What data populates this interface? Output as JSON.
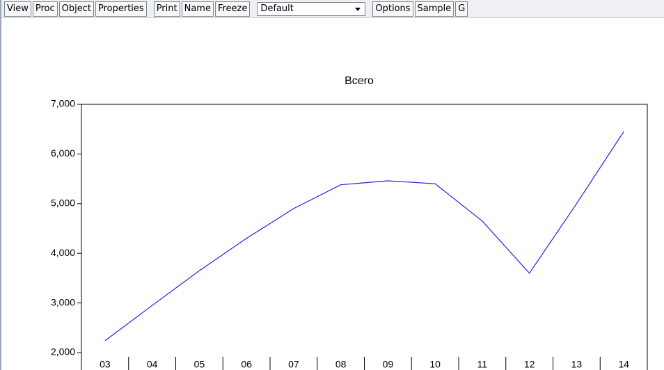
{
  "toolbar": {
    "buttons_left": [
      "View",
      "Proc",
      "Object",
      "Properties"
    ],
    "buttons_mid": [
      "Print",
      "Name",
      "Freeze"
    ],
    "dropdown": "Default",
    "buttons_right": [
      "Options",
      "Sample",
      "G"
    ]
  },
  "chart_data": {
    "type": "line",
    "title": "Bcero",
    "categories": [
      "03",
      "04",
      "05",
      "06",
      "07",
      "08",
      "09",
      "10",
      "11",
      "12",
      "13",
      "14"
    ],
    "series": [
      {
        "name": "Bcero",
        "color": "#2020e0",
        "values": [
          2240,
          2950,
          3650,
          4300,
          4900,
          5380,
          5460,
          5400,
          4650,
          3600,
          5000,
          6450
        ]
      }
    ],
    "ylim": [
      2000,
      7000
    ],
    "yticks": [
      {
        "value": 2000,
        "label": "2,000"
      },
      {
        "value": 3000,
        "label": "3,000"
      },
      {
        "value": 4000,
        "label": "4,000"
      },
      {
        "value": 5000,
        "label": "5,000"
      },
      {
        "value": 6000,
        "label": "6,000"
      },
      {
        "value": 7000,
        "label": "7,000"
      }
    ]
  }
}
